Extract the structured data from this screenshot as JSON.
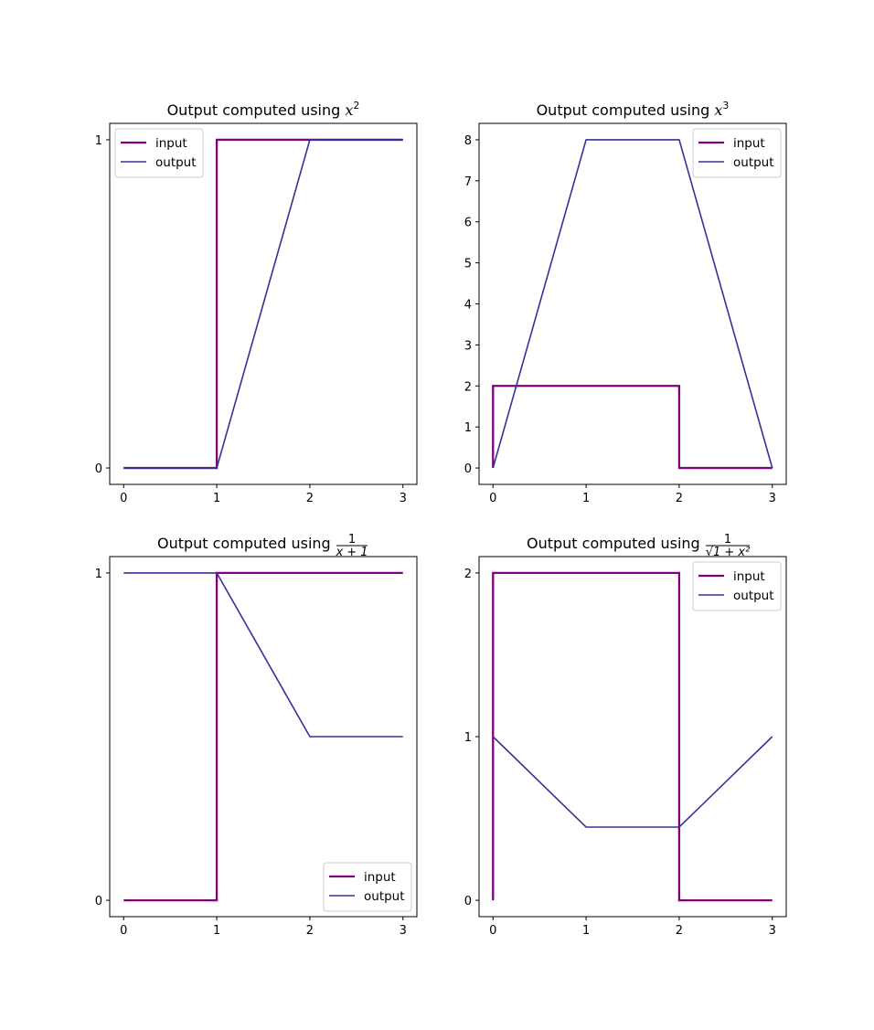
{
  "colors": {
    "input": "#800080",
    "output": "#333399",
    "frame": "#000000",
    "legend_border": "#cccccc"
  },
  "chart_data": [
    {
      "type": "line",
      "title": "Output computed using x²",
      "title_parts": {
        "prefix": "Output computed using ",
        "math": "x",
        "sup": "2"
      },
      "x": [
        0,
        1,
        2,
        3
      ],
      "xlim": [
        -0.15,
        3.15
      ],
      "ylim": [
        -0.05,
        1.05
      ],
      "xticks": [
        0,
        1,
        2,
        3
      ],
      "yticks": [
        0,
        1
      ],
      "legend_position": "upper left",
      "series": [
        {
          "name": "input",
          "points": [
            [
              0,
              0
            ],
            [
              1,
              0
            ],
            [
              1,
              1
            ],
            [
              3,
              1
            ]
          ],
          "color": "#800080"
        },
        {
          "name": "output",
          "points": [
            [
              0,
              0
            ],
            [
              1,
              0
            ],
            [
              2,
              1
            ],
            [
              3,
              1
            ]
          ],
          "color": "#333399"
        }
      ]
    },
    {
      "type": "line",
      "title": "Output computed using x³",
      "title_parts": {
        "prefix": "Output computed using ",
        "math": "x",
        "sup": "3"
      },
      "x": [
        0,
        1,
        2,
        3
      ],
      "xlim": [
        -0.15,
        3.15
      ],
      "ylim": [
        -0.4,
        8.4
      ],
      "xticks": [
        0,
        1,
        2,
        3
      ],
      "yticks": [
        0,
        1,
        2,
        3,
        4,
        5,
        6,
        7,
        8
      ],
      "legend_position": "upper right",
      "series": [
        {
          "name": "input",
          "points": [
            [
              0,
              0
            ],
            [
              0,
              2
            ],
            [
              2,
              2
            ],
            [
              2,
              0
            ],
            [
              3,
              0
            ]
          ],
          "color": "#800080"
        },
        {
          "name": "output",
          "points": [
            [
              0,
              0
            ],
            [
              1,
              8
            ],
            [
              2,
              8
            ],
            [
              3,
              0
            ]
          ],
          "color": "#333399"
        }
      ]
    },
    {
      "type": "line",
      "title": "Output computed using 1/(x+1)",
      "title_parts": {
        "prefix": "Output computed using ",
        "num": "1",
        "den": "x + 1"
      },
      "x": [
        0,
        1,
        2,
        3
      ],
      "xlim": [
        -0.15,
        3.15
      ],
      "ylim": [
        -0.05,
        1.05
      ],
      "xticks": [
        0,
        1,
        2,
        3
      ],
      "yticks": [
        0,
        1
      ],
      "legend_position": "lower right",
      "series": [
        {
          "name": "input",
          "points": [
            [
              0,
              0
            ],
            [
              1,
              0
            ],
            [
              1,
              1
            ],
            [
              3,
              1
            ]
          ],
          "color": "#800080"
        },
        {
          "name": "output",
          "points": [
            [
              0,
              1
            ],
            [
              1,
              1
            ],
            [
              2,
              0.5
            ],
            [
              3,
              0.5
            ]
          ],
          "color": "#333399"
        }
      ]
    },
    {
      "type": "line",
      "title": "Output computed using 1/√(1+x²)",
      "title_parts": {
        "prefix": "Output computed using ",
        "num": "1",
        "den": "√1 + x²"
      },
      "x": [
        0,
        1,
        2,
        3
      ],
      "xlim": [
        -0.15,
        3.15
      ],
      "ylim": [
        -0.1,
        2.1
      ],
      "xticks": [
        0,
        1,
        2,
        3
      ],
      "yticks": [
        0,
        1,
        2
      ],
      "legend_position": "upper right",
      "series": [
        {
          "name": "input",
          "points": [
            [
              0,
              0
            ],
            [
              0,
              2
            ],
            [
              2,
              2
            ],
            [
              2,
              0
            ],
            [
              3,
              0
            ]
          ],
          "color": "#800080"
        },
        {
          "name": "output",
          "points": [
            [
              0,
              1
            ],
            [
              1,
              0.4472
            ],
            [
              2,
              0.4472
            ],
            [
              3,
              1
            ]
          ],
          "color": "#333399"
        }
      ]
    }
  ]
}
